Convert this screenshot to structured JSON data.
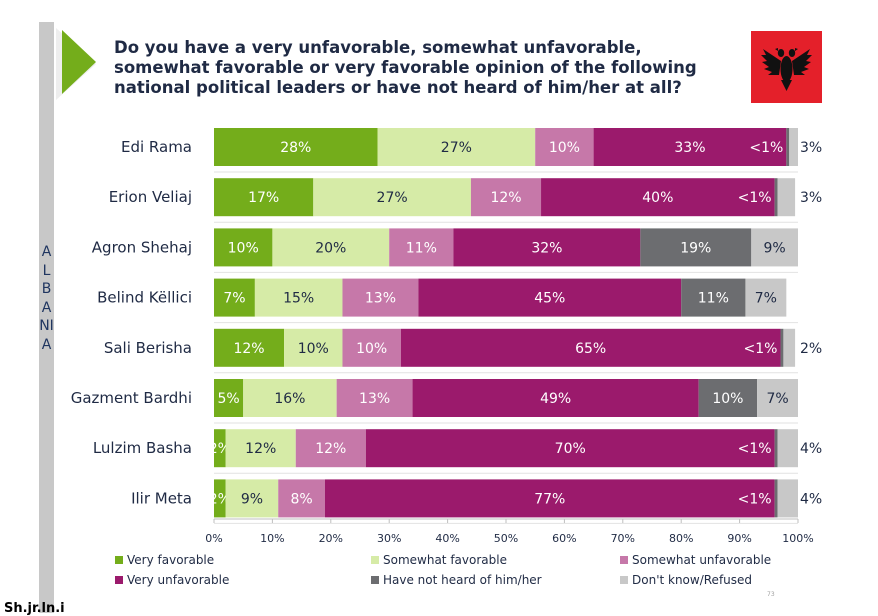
{
  "title": "Do you have a very unfavorable, somewhat unfavorable, somewhat favorable or very favorable opinion of the following national political leaders or have not heard of him/her at all?",
  "side_label": "ALBANIA",
  "slide_number": "73",
  "footer_text": "Sh.jr.ln.i",
  "colors": {
    "very_favorable": "#74ad1b",
    "somewhat_favorable": "#d6eba7",
    "somewhat_unfavorable": "#c678a9",
    "very_unfavorable": "#9b1a6c",
    "not_heard": "#6c6d70",
    "dont_know": "#c8c8c8",
    "flag_red": "#e4202a",
    "accent_green": "#74ad1b"
  },
  "chart_data": {
    "type": "bar",
    "orientation": "horizontal",
    "stacked": true,
    "title": "Do you have a very unfavorable, somewhat unfavorable, somewhat favorable or very favorable opinion of the following national political leaders or have not heard of him/her at all?",
    "xlim": [
      0,
      100
    ],
    "x_ticks": [
      "0%",
      "10%",
      "20%",
      "30%",
      "40%",
      "50%",
      "60%",
      "70%",
      "80%",
      "90%",
      "100%"
    ],
    "categories": [
      "Edi Rama",
      "Erion Veliaj",
      "Agron Shehaj",
      "Belind Këllici",
      "Sali Berisha",
      "Gazment Bardhi",
      "Lulzim Basha",
      "Ilir Meta"
    ],
    "legend_position": "bottom",
    "series": [
      {
        "name": "Very favorable",
        "key": "very_favorable",
        "values": [
          28,
          17,
          10,
          7,
          12,
          5,
          2,
          2
        ],
        "labels": [
          "28%",
          "17%",
          "10%",
          "7%",
          "12%",
          "5%",
          "2%",
          "2%"
        ]
      },
      {
        "name": "Somewhat favorable",
        "key": "somewhat_favorable",
        "values": [
          27,
          27,
          20,
          15,
          10,
          16,
          12,
          9
        ],
        "labels": [
          "27%",
          "27%",
          "20%",
          "15%",
          "10%",
          "16%",
          "12%",
          "9%"
        ]
      },
      {
        "name": "Somewhat unfavorable",
        "key": "somewhat_unfavorable",
        "values": [
          10,
          12,
          11,
          13,
          10,
          13,
          12,
          8
        ],
        "labels": [
          "10%",
          "12%",
          "11%",
          "13%",
          "10%",
          "13%",
          "12%",
          "8%"
        ]
      },
      {
        "name": "Very unfavorable",
        "key": "very_unfavorable",
        "values": [
          33,
          40,
          32,
          45,
          65,
          49,
          70,
          77
        ],
        "labels": [
          "33%",
          "40%",
          "32%",
          "45%",
          "65%",
          "49%",
          "70%",
          "77%"
        ]
      },
      {
        "name": "Have not heard of him/her",
        "key": "not_heard",
        "values": [
          0.5,
          0.5,
          19,
          11,
          0.5,
          10,
          0.5,
          0.5
        ],
        "labels": [
          "<1%",
          "<1%",
          "19%",
          "11%",
          "<1%",
          "10%",
          "<1%",
          "<1%"
        ]
      },
      {
        "name": "Don't know/Refused",
        "key": "dont_know",
        "values": [
          3,
          3,
          9,
          7,
          2,
          7,
          4,
          4
        ],
        "labels": [
          "3%",
          "3%",
          "9%",
          "7%",
          "2%",
          "7%",
          "4%",
          "4%"
        ]
      }
    ]
  }
}
